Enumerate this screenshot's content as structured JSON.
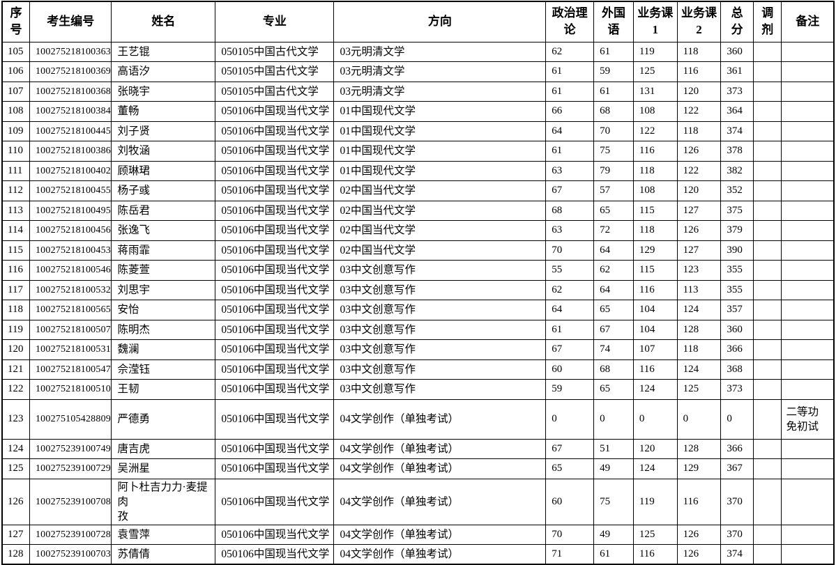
{
  "colors": {
    "border": "#000000",
    "text": "#000000",
    "background": "#ffffff"
  },
  "table": {
    "columns": [
      {
        "key": "index",
        "label": "序\n号"
      },
      {
        "key": "candidate_id",
        "label": "考生编号"
      },
      {
        "key": "name",
        "label": "姓名"
      },
      {
        "key": "major",
        "label": "专业"
      },
      {
        "key": "direction",
        "label": "方向"
      },
      {
        "key": "politics",
        "label": "政治理\n论"
      },
      {
        "key": "foreign_language",
        "label": "外国\n语"
      },
      {
        "key": "course1",
        "label": "业务课\n1"
      },
      {
        "key": "course2",
        "label": "业务课\n2"
      },
      {
        "key": "total",
        "label": "总\n分"
      },
      {
        "key": "adjustment",
        "label": "调\n剂"
      },
      {
        "key": "remarks",
        "label": "备注"
      }
    ],
    "rows": [
      {
        "index": "105",
        "candidate_id": "100275218100363",
        "name": "王艺锟",
        "major": "050105中国古代文学",
        "direction": "03元明清文学",
        "politics": "62",
        "foreign_language": "61",
        "course1": "119",
        "course2": "118",
        "total": "360",
        "adjustment": "",
        "remarks": ""
      },
      {
        "index": "106",
        "candidate_id": "100275218100369",
        "name": "高语汐",
        "major": "050105中国古代文学",
        "direction": "03元明清文学",
        "politics": "61",
        "foreign_language": "59",
        "course1": "125",
        "course2": "116",
        "total": "361",
        "adjustment": "",
        "remarks": ""
      },
      {
        "index": "107",
        "candidate_id": "100275218100368",
        "name": "张晓宇",
        "major": "050105中国古代文学",
        "direction": "03元明清文学",
        "politics": "61",
        "foreign_language": "61",
        "course1": "131",
        "course2": "120",
        "total": "373",
        "adjustment": "",
        "remarks": ""
      },
      {
        "index": "108",
        "candidate_id": "100275218100384",
        "name": "董畅",
        "major": "050106中国现当代文学",
        "direction": "01中国现代文学",
        "politics": "66",
        "foreign_language": "68",
        "course1": "108",
        "course2": "122",
        "total": "364",
        "adjustment": "",
        "remarks": ""
      },
      {
        "index": "109",
        "candidate_id": "100275218100445",
        "name": "刘子贤",
        "major": "050106中国现当代文学",
        "direction": "01中国现代文学",
        "politics": "64",
        "foreign_language": "70",
        "course1": "122",
        "course2": "118",
        "total": "374",
        "adjustment": "",
        "remarks": ""
      },
      {
        "index": "110",
        "candidate_id": "100275218100386",
        "name": "刘牧涵",
        "major": "050106中国现当代文学",
        "direction": "01中国现代文学",
        "politics": "61",
        "foreign_language": "75",
        "course1": "116",
        "course2": "126",
        "total": "378",
        "adjustment": "",
        "remarks": ""
      },
      {
        "index": "111",
        "candidate_id": "100275218100402",
        "name": "顾琳珺",
        "major": "050106中国现当代文学",
        "direction": "01中国现代文学",
        "politics": "63",
        "foreign_language": "79",
        "course1": "118",
        "course2": "122",
        "total": "382",
        "adjustment": "",
        "remarks": ""
      },
      {
        "index": "112",
        "candidate_id": "100275218100455",
        "name": "杨子彧",
        "major": "050106中国现当代文学",
        "direction": "02中国当代文学",
        "politics": "67",
        "foreign_language": "57",
        "course1": "108",
        "course2": "120",
        "total": "352",
        "adjustment": "",
        "remarks": ""
      },
      {
        "index": "113",
        "candidate_id": "100275218100495",
        "name": "陈岳君",
        "major": "050106中国现当代文学",
        "direction": "02中国当代文学",
        "politics": "68",
        "foreign_language": "65",
        "course1": "115",
        "course2": "127",
        "total": "375",
        "adjustment": "",
        "remarks": ""
      },
      {
        "index": "114",
        "candidate_id": "100275218100456",
        "name": "张逸飞",
        "major": "050106中国现当代文学",
        "direction": "02中国当代文学",
        "politics": "63",
        "foreign_language": "72",
        "course1": "118",
        "course2": "126",
        "total": "379",
        "adjustment": "",
        "remarks": ""
      },
      {
        "index": "115",
        "candidate_id": "100275218100453",
        "name": "蒋雨霏",
        "major": "050106中国现当代文学",
        "direction": "02中国当代文学",
        "politics": "70",
        "foreign_language": "64",
        "course1": "129",
        "course2": "127",
        "total": "390",
        "adjustment": "",
        "remarks": ""
      },
      {
        "index": "116",
        "candidate_id": "100275218100546",
        "name": "陈菱萱",
        "major": "050106中国现当代文学",
        "direction": "03中文创意写作",
        "politics": "55",
        "foreign_language": "62",
        "course1": "115",
        "course2": "123",
        "total": "355",
        "adjustment": "",
        "remarks": ""
      },
      {
        "index": "117",
        "candidate_id": "100275218100532",
        "name": "刘思宇",
        "major": "050106中国现当代文学",
        "direction": "03中文创意写作",
        "politics": "62",
        "foreign_language": "64",
        "course1": "116",
        "course2": "113",
        "total": "355",
        "adjustment": "",
        "remarks": ""
      },
      {
        "index": "118",
        "candidate_id": "100275218100565",
        "name": "安怡",
        "major": "050106中国现当代文学",
        "direction": "03中文创意写作",
        "politics": "64",
        "foreign_language": "65",
        "course1": "104",
        "course2": "124",
        "total": "357",
        "adjustment": "",
        "remarks": ""
      },
      {
        "index": "119",
        "candidate_id": "100275218100507",
        "name": "陈明杰",
        "major": "050106中国现当代文学",
        "direction": "03中文创意写作",
        "politics": "61",
        "foreign_language": "67",
        "course1": "104",
        "course2": "128",
        "total": "360",
        "adjustment": "",
        "remarks": ""
      },
      {
        "index": "120",
        "candidate_id": "100275218100531",
        "name": "魏澜",
        "major": "050106中国现当代文学",
        "direction": "03中文创意写作",
        "politics": "67",
        "foreign_language": "74",
        "course1": "107",
        "course2": "118",
        "total": "366",
        "adjustment": "",
        "remarks": ""
      },
      {
        "index": "121",
        "candidate_id": "100275218100547",
        "name": "佘滢钰",
        "major": "050106中国现当代文学",
        "direction": "03中文创意写作",
        "politics": "60",
        "foreign_language": "68",
        "course1": "116",
        "course2": "124",
        "total": "368",
        "adjustment": "",
        "remarks": ""
      },
      {
        "index": "122",
        "candidate_id": "100275218100510",
        "name": "王韧",
        "major": "050106中国现当代文学",
        "direction": "03中文创意写作",
        "politics": "59",
        "foreign_language": "65",
        "course1": "124",
        "course2": "125",
        "total": "373",
        "adjustment": "",
        "remarks": ""
      },
      {
        "index": "123",
        "candidate_id": "100275105428809",
        "name": "严德勇",
        "major": "050106中国现当代文学",
        "direction": "04文学创作（单独考试）",
        "politics": "0",
        "foreign_language": "0",
        "course1": "0",
        "course2": "0",
        "total": "0",
        "adjustment": "",
        "remarks": "二等功\n免初试"
      },
      {
        "index": "124",
        "candidate_id": "100275239100749",
        "name": "唐吉虎",
        "major": "050106中国现当代文学",
        "direction": "04文学创作（单独考试）",
        "politics": "67",
        "foreign_language": "51",
        "course1": "120",
        "course2": "128",
        "total": "366",
        "adjustment": "",
        "remarks": ""
      },
      {
        "index": "125",
        "candidate_id": "100275239100729",
        "name": "吴洲星",
        "major": "050106中国现当代文学",
        "direction": "04文学创作（单独考试）",
        "politics": "65",
        "foreign_language": "49",
        "course1": "124",
        "course2": "129",
        "total": "367",
        "adjustment": "",
        "remarks": ""
      },
      {
        "index": "126",
        "candidate_id": "100275239100708",
        "name": "阿卜杜吉力力·麦提肉\n孜",
        "major": "050106中国现当代文学",
        "direction": "04文学创作（单独考试）",
        "politics": "60",
        "foreign_language": "75",
        "course1": "119",
        "course2": "116",
        "total": "370",
        "adjustment": "",
        "remarks": ""
      },
      {
        "index": "127",
        "candidate_id": "100275239100728",
        "name": "袁雪萍",
        "major": "050106中国现当代文学",
        "direction": "04文学创作（单独考试）",
        "politics": "70",
        "foreign_language": "49",
        "course1": "125",
        "course2": "126",
        "total": "370",
        "adjustment": "",
        "remarks": ""
      },
      {
        "index": "128",
        "candidate_id": "100275239100703",
        "name": "苏倩倩",
        "major": "050106中国现当代文学",
        "direction": "04文学创作（单独考试）",
        "politics": "71",
        "foreign_language": "61",
        "course1": "116",
        "course2": "126",
        "total": "374",
        "adjustment": "",
        "remarks": ""
      }
    ]
  }
}
